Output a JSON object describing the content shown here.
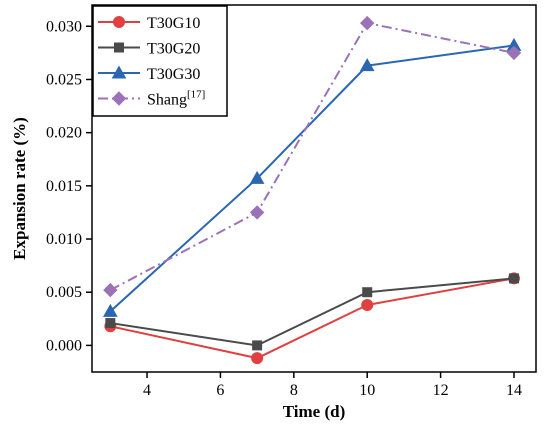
{
  "chart_data": {
    "type": "line",
    "xlabel": "Time (d)",
    "ylabel": "Expansion rate (%)",
    "xlim": [
      2.5,
      14.6
    ],
    "ylim": [
      -0.0025,
      0.032
    ],
    "xticks": [
      4,
      6,
      8,
      10,
      12,
      14
    ],
    "yticks": [
      0.0,
      0.005,
      0.01,
      0.015,
      0.02,
      0.025,
      0.03
    ],
    "xtick_labels": [
      "4",
      "6",
      "8",
      "10",
      "12",
      "14"
    ],
    "ytick_labels": [
      "0.000",
      "0.005",
      "0.010",
      "0.015",
      "0.020",
      "0.025",
      "0.030"
    ],
    "grid": false,
    "legend_position": "top-left",
    "series": [
      {
        "name": "T30G10",
        "color": "#e04040",
        "marker": "circle",
        "dash": "solid",
        "x": [
          3,
          7,
          10,
          14
        ],
        "y": [
          0.0018,
          -0.0012,
          0.0038,
          0.0063
        ]
      },
      {
        "name": "T30G20",
        "color": "#4a4a4a",
        "marker": "square",
        "dash": "solid",
        "x": [
          3,
          7,
          10,
          14
        ],
        "y": [
          0.0021,
          0.0,
          0.005,
          0.0063
        ]
      },
      {
        "name": "T30G30",
        "color": "#2b66b0",
        "marker": "triangle",
        "dash": "solid",
        "x": [
          3,
          7,
          10,
          14
        ],
        "y": [
          0.0032,
          0.0157,
          0.0263,
          0.0282
        ]
      },
      {
        "name": "Shang",
        "name_sup": "[17]",
        "color": "#9b72b8",
        "marker": "diamond",
        "dash": "dashdot",
        "x": [
          3,
          7,
          10,
          14
        ],
        "y": [
          0.0052,
          0.0125,
          0.0303,
          0.0275
        ]
      }
    ]
  }
}
